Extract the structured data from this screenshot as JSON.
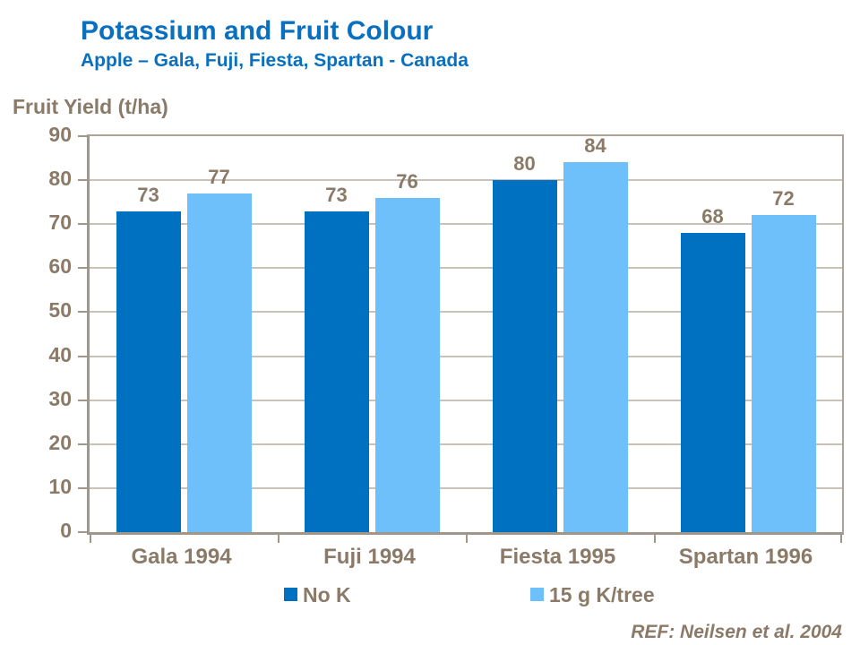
{
  "header": {
    "title": "Potassium and Fruit Colour",
    "subtitle": "Apple – Gala, Fuji, Fiesta, Spartan - Canada"
  },
  "y_axis_title": "Fruit Yield (t/ha)",
  "footer": {
    "reference": "REF: Neilsen et al. 2004"
  },
  "chart_data": {
    "type": "bar",
    "title": "Potassium and Fruit Colour",
    "subtitle": "Apple – Gala, Fuji, Fiesta, Spartan - Canada",
    "ylabel": "Fruit Yield (t/ha)",
    "categories": [
      "Gala 1994",
      "Fuji 1994",
      "Fiesta 1995",
      "Spartan 1996"
    ],
    "series": [
      {
        "name": "No K",
        "color": "#0071C1",
        "values": [
          73,
          73,
          80,
          68
        ]
      },
      {
        "name": "15 g K/tree",
        "color": "#6DC0FA",
        "values": [
          77,
          76,
          84,
          72
        ]
      }
    ],
    "ylim": [
      0,
      90
    ],
    "ytick_step": 10,
    "yticks": [
      0,
      10,
      20,
      30,
      40,
      50,
      60,
      70,
      80,
      90
    ],
    "grid": true,
    "legend_position": "bottom",
    "data_labels": true,
    "reference": "REF: Neilsen et al. 2004"
  },
  "colors": {
    "title_blue": "#0970C0",
    "label_brown": "#8A7A67",
    "axis_border": "#A1968A",
    "gridline": "#C8C2B9",
    "series_dark": "#0071C1",
    "series_light": "#6DC0FA"
  }
}
